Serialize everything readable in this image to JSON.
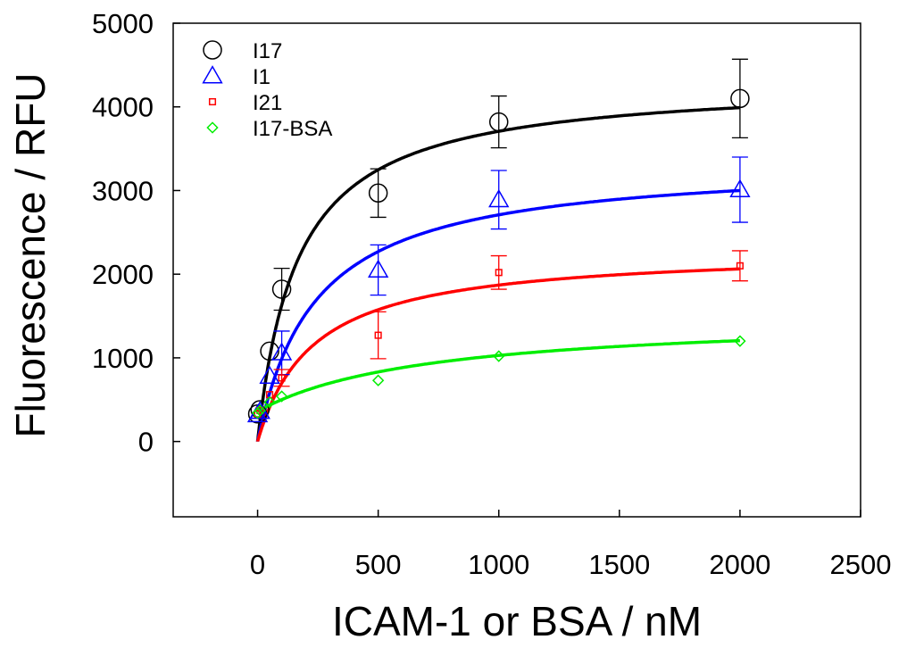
{
  "chart_data": {
    "type": "scatter",
    "xlabel": "ICAM-1 or BSA / nM",
    "ylabel": "Fluorescence / RFU",
    "xlim": [
      -350,
      2500
    ],
    "ylim": [
      -900,
      5000
    ],
    "xticks": [
      0,
      500,
      1000,
      1500,
      2000,
      2500
    ],
    "yticks": [
      0,
      1000,
      2000,
      3000,
      4000,
      5000
    ],
    "grid": false,
    "legend_position": "top-left",
    "series": [
      {
        "name": "I17",
        "marker": "circle",
        "color": "#000000",
        "x": [
          0,
          10,
          50,
          100,
          500,
          1000,
          2000
        ],
        "y": [
          330,
          380,
          1080,
          1820,
          2970,
          3820,
          4100
        ],
        "err": [
          0,
          0,
          0,
          250,
          290,
          310,
          470
        ],
        "fit": {
          "bmax": 4320,
          "kd": 165,
          "b0": 0
        }
      },
      {
        "name": "I1",
        "marker": "triangle",
        "color": "#0000ff",
        "x": [
          0,
          10,
          50,
          100,
          500,
          1000,
          2000
        ],
        "y": [
          320,
          360,
          780,
          1060,
          2050,
          2890,
          3010
        ],
        "err": [
          0,
          0,
          0,
          260,
          300,
          350,
          390
        ],
        "fit": {
          "bmax": 3360,
          "kd": 240,
          "b0": 0
        }
      },
      {
        "name": "I21",
        "marker": "square",
        "color": "#ff0000",
        "x": [
          0,
          10,
          50,
          100,
          500,
          1000,
          2000
        ],
        "y": [
          330,
          370,
          560,
          760,
          1270,
          2020,
          2100
        ],
        "err": [
          0,
          0,
          0,
          100,
          280,
          200,
          180
        ],
        "fit": {
          "bmax": 2300,
          "kd": 230,
          "b0": 0
        }
      },
      {
        "name": "I17-BSA",
        "marker": "diamond",
        "color": "#00ee00",
        "x": [
          0,
          10,
          50,
          100,
          500,
          1000,
          2000
        ],
        "y": [
          340,
          370,
          470,
          540,
          730,
          1020,
          1200
        ],
        "err": [
          0,
          0,
          0,
          0,
          0,
          0,
          0
        ],
        "fit": {
          "bmax": 1150,
          "kd": 720,
          "b0": 360
        }
      }
    ]
  }
}
